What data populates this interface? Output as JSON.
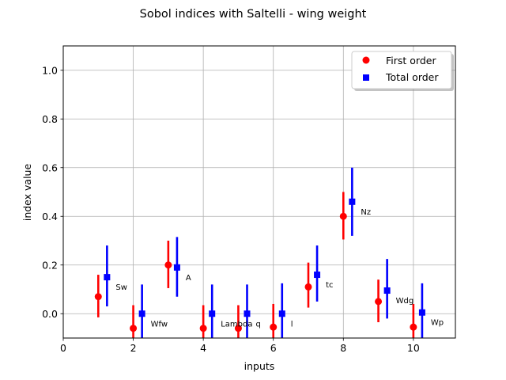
{
  "chart_data": {
    "type": "scatter",
    "title": "Sobol indices with Saltelli - wing weight",
    "xlabel": "inputs",
    "ylabel": "index value",
    "xlim": [
      0,
      11.2
    ],
    "ylim": [
      -0.1,
      1.1
    ],
    "xticks": [
      0,
      2,
      4,
      6,
      8,
      10
    ],
    "yticks": [
      0.0,
      0.2,
      0.4,
      0.6,
      0.8,
      1.0
    ],
    "xtick_labels": [
      "0",
      "2",
      "4",
      "6",
      "8",
      "10"
    ],
    "ytick_labels": [
      "0.0",
      "0.2",
      "0.4",
      "0.6",
      "0.8",
      "1.0"
    ],
    "grid": true,
    "legend_position": "top-right",
    "labels": [
      "Sw",
      "Wfw",
      "A",
      "Lambda",
      "q",
      "l",
      "tc",
      "Nz",
      "Wdg",
      "Wp"
    ],
    "series": [
      {
        "name": "First order",
        "marker": "circle",
        "color": "#ff0000",
        "x": [
          1,
          2,
          3,
          4,
          5,
          6,
          7,
          8,
          9,
          10
        ],
        "values": [
          0.07,
          -0.06,
          0.2,
          -0.06,
          -0.06,
          -0.055,
          0.11,
          0.4,
          0.05,
          -0.055
        ],
        "lower": [
          -0.015,
          -0.15,
          0.105,
          -0.15,
          -0.15,
          -0.145,
          0.025,
          0.305,
          -0.035,
          -0.14
        ],
        "upper": [
          0.16,
          0.035,
          0.3,
          0.035,
          0.035,
          0.04,
          0.21,
          0.5,
          0.14,
          0.04
        ]
      },
      {
        "name": "Total order",
        "marker": "square",
        "color": "#0000ff",
        "x": [
          1.25,
          2.25,
          3.25,
          4.25,
          5.25,
          6.25,
          7.25,
          8.25,
          9.25,
          10.25
        ],
        "values": [
          0.15,
          0.0,
          0.19,
          0.0,
          0.0,
          0.0,
          0.16,
          0.46,
          0.095,
          0.005
        ],
        "lower": [
          0.03,
          -0.12,
          0.07,
          -0.12,
          -0.12,
          -0.12,
          0.05,
          0.32,
          -0.02,
          -0.115
        ],
        "upper": [
          0.28,
          0.12,
          0.315,
          0.12,
          0.12,
          0.125,
          0.28,
          0.6,
          0.225,
          0.125
        ]
      }
    ]
  }
}
